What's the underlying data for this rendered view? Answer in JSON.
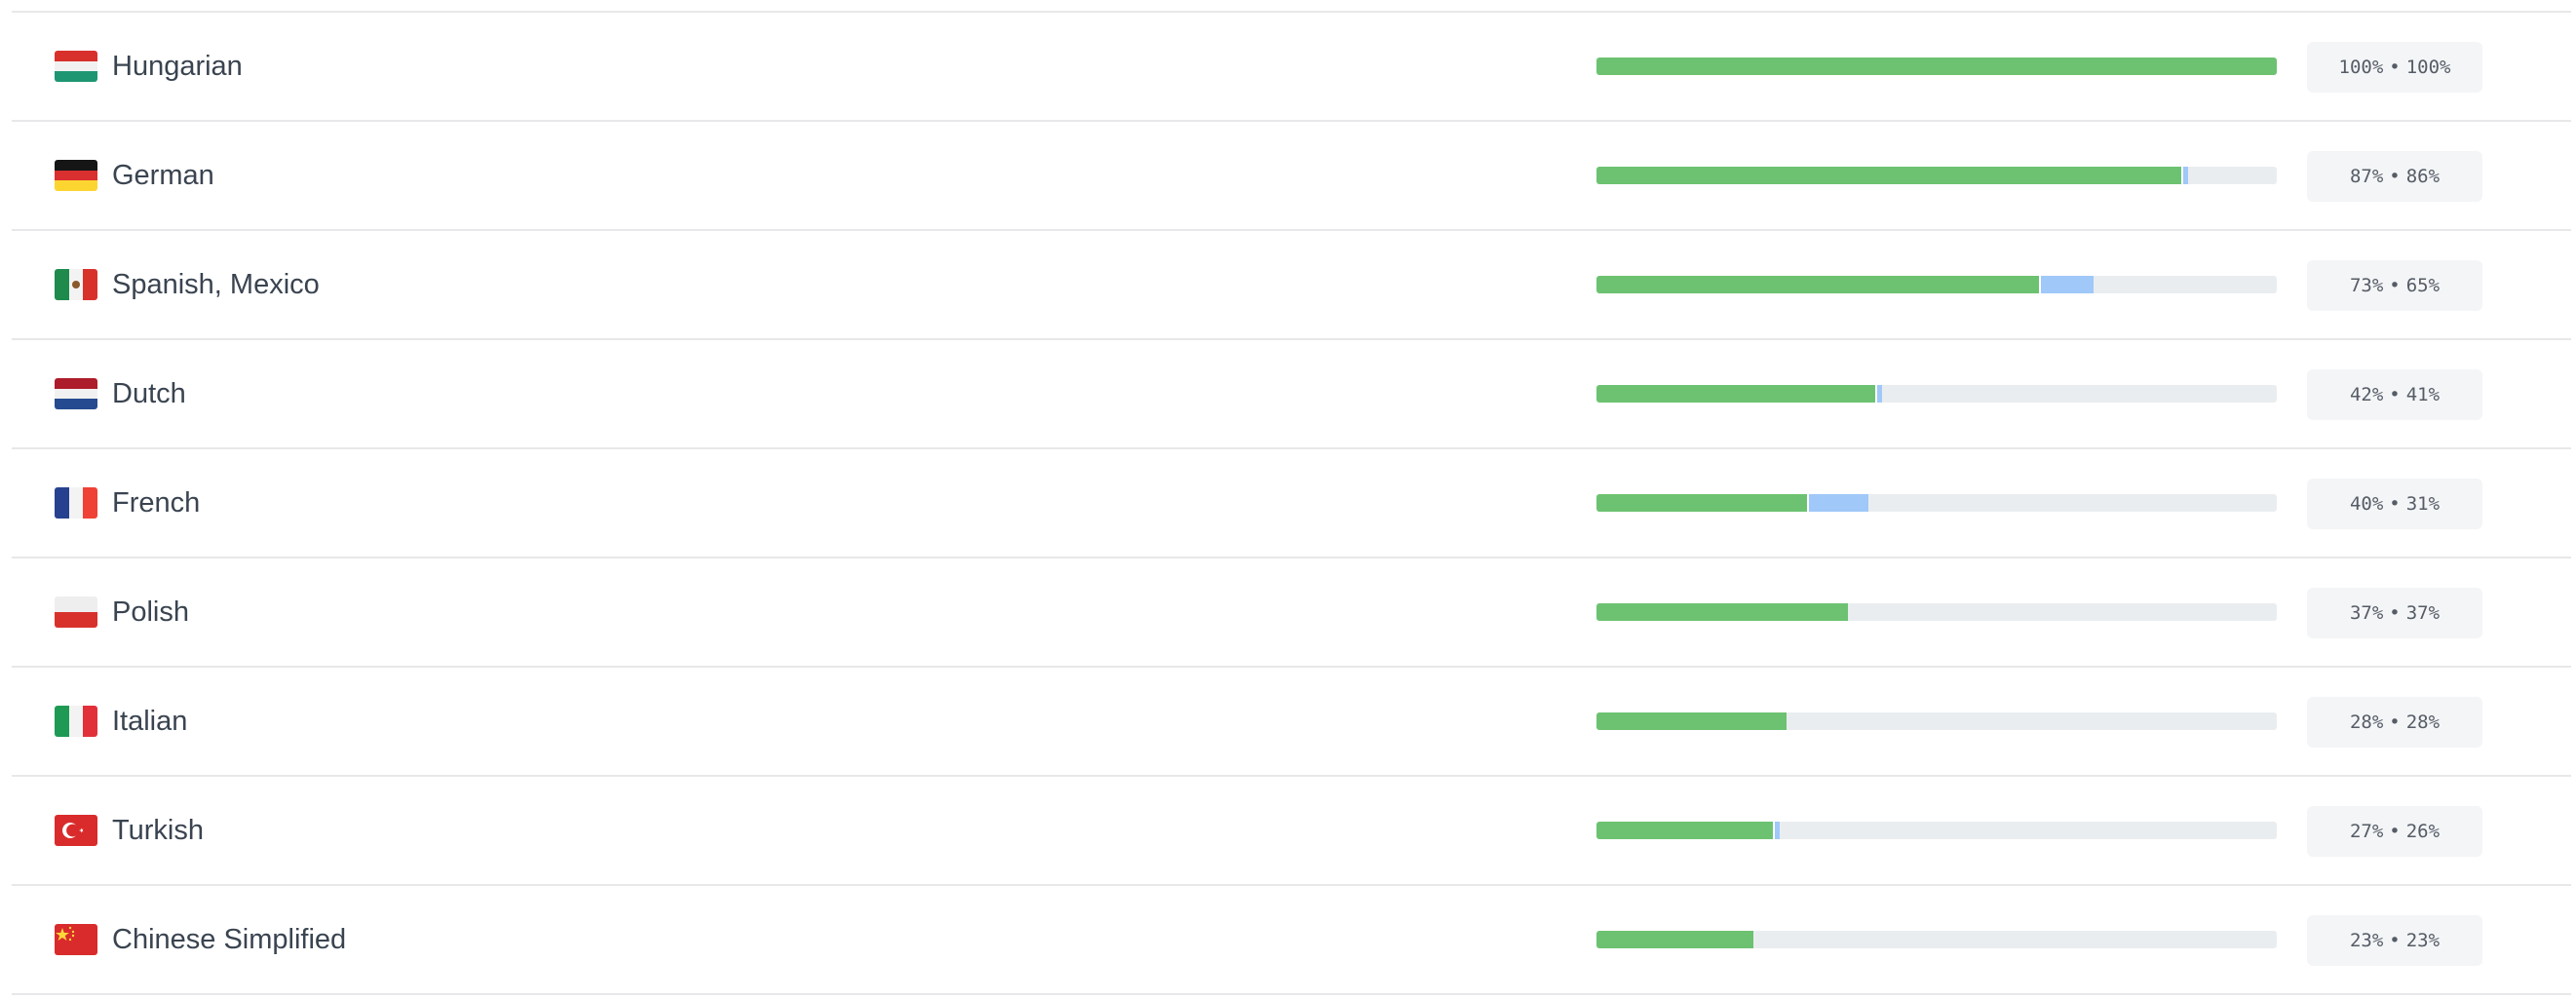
{
  "colors": {
    "translated": "#a0c8f8",
    "approved": "#6cc270",
    "track": "#eaedf0"
  },
  "separator": "•",
  "languages": [
    {
      "name": "Hungarian",
      "flag": "hu",
      "translated": 100,
      "approved": 100,
      "translated_label": "100%",
      "approved_label": "100%"
    },
    {
      "name": "German",
      "flag": "de",
      "translated": 87,
      "approved": 86,
      "translated_label": "87%",
      "approved_label": "86%"
    },
    {
      "name": "Spanish, Mexico",
      "flag": "mx",
      "translated": 73,
      "approved": 65,
      "translated_label": "73%",
      "approved_label": "65%"
    },
    {
      "name": "Dutch",
      "flag": "nl",
      "translated": 42,
      "approved": 41,
      "translated_label": "42%",
      "approved_label": "41%"
    },
    {
      "name": "French",
      "flag": "fr",
      "translated": 40,
      "approved": 31,
      "translated_label": "40%",
      "approved_label": "31%"
    },
    {
      "name": "Polish",
      "flag": "pl",
      "translated": 37,
      "approved": 37,
      "translated_label": "37%",
      "approved_label": "37%"
    },
    {
      "name": "Italian",
      "flag": "it",
      "translated": 28,
      "approved": 28,
      "translated_label": "28%",
      "approved_label": "28%"
    },
    {
      "name": "Turkish",
      "flag": "tr",
      "translated": 27,
      "approved": 26,
      "translated_label": "27%",
      "approved_label": "26%"
    },
    {
      "name": "Chinese Simplified",
      "flag": "cn",
      "translated": 23,
      "approved": 23,
      "translated_label": "23%",
      "approved_label": "23%"
    }
  ]
}
